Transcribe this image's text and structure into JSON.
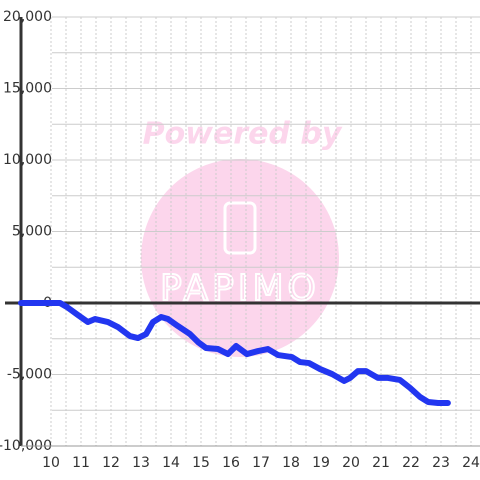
{
  "chart_data": {
    "type": "line",
    "watermark": {
      "tagline": "Powered by",
      "brand": "PAPIMO"
    },
    "x": [
      9,
      10.3,
      10.53,
      10.9,
      11.23,
      11.47,
      11.9,
      12.23,
      12.63,
      12.9,
      13.17,
      13.4,
      13.67,
      13.9,
      14.23,
      14.63,
      14.9,
      15.17,
      15.57,
      15.9,
      16.17,
      16.53,
      16.9,
      17.23,
      17.57,
      18.03,
      18.3,
      18.6,
      18.97,
      19.37,
      19.77,
      19.97,
      20.23,
      20.5,
      20.9,
      21.23,
      21.63,
      21.97,
      22.3,
      22.57,
      22.9,
      23.23
    ],
    "series": [
      {
        "color": "#2236f0",
        "values": [
          0,
          0,
          -280,
          -840,
          -1330,
          -1120,
          -1330,
          -1680,
          -2310,
          -2450,
          -2170,
          -1330,
          -980,
          -1120,
          -1610,
          -2170,
          -2730,
          -3150,
          -3220,
          -3570,
          -3010,
          -3570,
          -3360,
          -3220,
          -3640,
          -3780,
          -4130,
          -4200,
          -4620,
          -4970,
          -5450,
          -5240,
          -4760,
          -4760,
          -5240,
          -5240,
          -5380,
          -5940,
          -6570,
          -6920,
          -6990,
          -6990
        ]
      }
    ],
    "xlim": [
      9,
      24.3
    ],
    "xticks": [
      10,
      11,
      12,
      13,
      14,
      15,
      16,
      17,
      18,
      19,
      20,
      21,
      22,
      23,
      24
    ],
    "ylim": [
      -10000,
      20000
    ],
    "yticks": [
      {
        "value": -10000,
        "label": "-10,000"
      },
      {
        "value": -5000,
        "label": "-5,000"
      },
      0,
      {
        "value": 5000,
        "label": "5,000"
      },
      {
        "value": 10000,
        "label": "10,000"
      },
      {
        "value": 15000,
        "label": "15,000"
      },
      {
        "value": 20000,
        "label": "20,000"
      }
    ],
    "grid": true
  }
}
